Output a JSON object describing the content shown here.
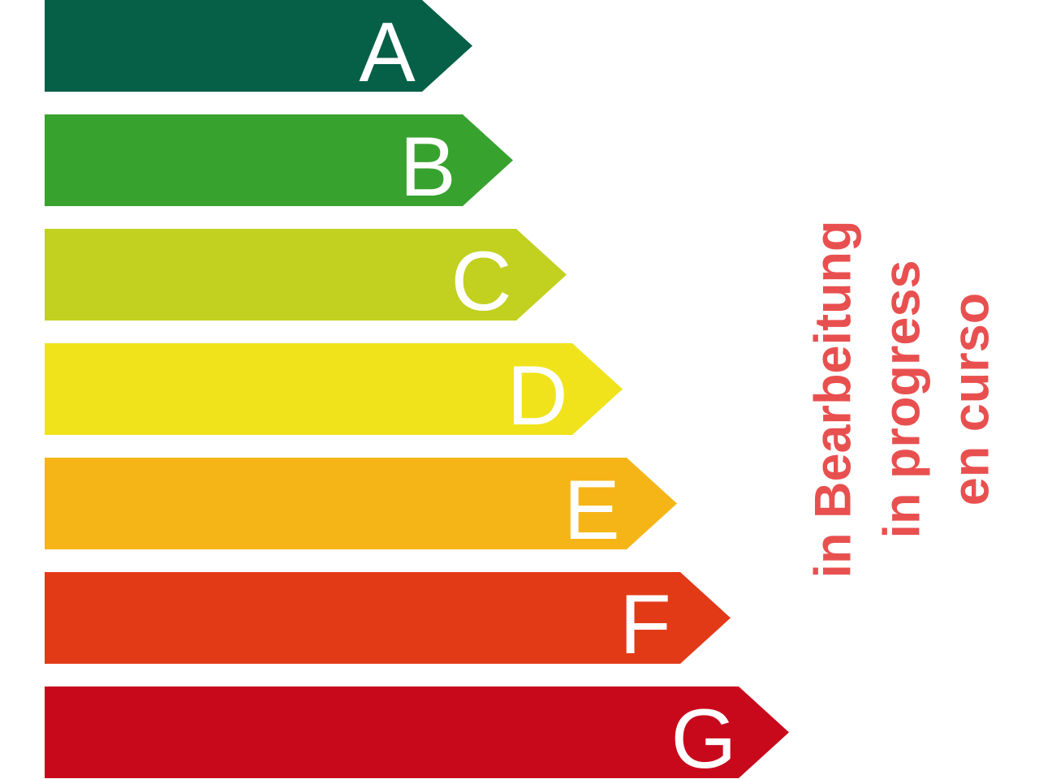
{
  "chart_data": {
    "type": "energy-label",
    "classes": [
      {
        "letter": "A",
        "color": "#066048"
      },
      {
        "letter": "B",
        "color": "#38a22f"
      },
      {
        "letter": "C",
        "color": "#c2d01f"
      },
      {
        "letter": "D",
        "color": "#f0e31b"
      },
      {
        "letter": "E",
        "color": "#f5b517"
      },
      {
        "letter": "F",
        "color": "#e23a17"
      },
      {
        "letter": "G",
        "color": "#c8091c"
      }
    ]
  },
  "status": {
    "color": "#e8504f",
    "lines": [
      "in Bearbeitung",
      "in progress",
      "en curso"
    ]
  }
}
